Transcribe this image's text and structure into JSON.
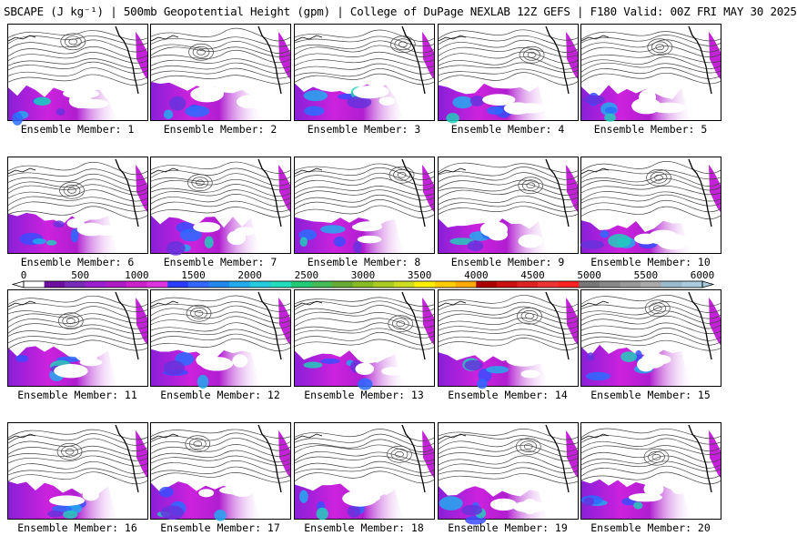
{
  "title": "SBCAPE (J kg⁻¹) | 500mb Geopotential Height (gpm) | College of DuPage NEXLAB 12Z GEFS | F180 Valid: 00Z FRI MAY 30 2025",
  "colorbar": {
    "tick_labels": [
      "0",
      "500",
      "1000",
      "1500",
      "2000",
      "2500",
      "3000",
      "3500",
      "4000",
      "4500",
      "5000",
      "5500",
      "6000"
    ],
    "colors": [
      "#ffffff",
      "#6e0fa0",
      "#7a2ab8",
      "#9b1fd0",
      "#b21bc8",
      "#cc22cc",
      "#e033e0",
      "#2a3cff",
      "#3366ff",
      "#2288ee",
      "#22aaee",
      "#22ccdd",
      "#22ddbb",
      "#22cc77",
      "#44bb55",
      "#66aa33",
      "#88bb22",
      "#aacc22",
      "#ccdd22",
      "#ffee00",
      "#ffcc00",
      "#ffaa00",
      "#aa0000",
      "#cc1111",
      "#dd2222",
      "#ee3333",
      "#ff2222",
      "#777777",
      "#888888",
      "#999999",
      "#aaaaaa",
      "#99bbcc",
      "#aaccdd"
    ]
  },
  "members": [
    {
      "label": "Ensemble Member: 1"
    },
    {
      "label": "Ensemble Member: 2"
    },
    {
      "label": "Ensemble Member: 3"
    },
    {
      "label": "Ensemble Member: 4"
    },
    {
      "label": "Ensemble Member: 5"
    },
    {
      "label": "Ensemble Member: 6"
    },
    {
      "label": "Ensemble Member: 7"
    },
    {
      "label": "Ensemble Member: 8"
    },
    {
      "label": "Ensemble Member: 9"
    },
    {
      "label": "Ensemble Member: 10"
    },
    {
      "label": "Ensemble Member: 11"
    },
    {
      "label": "Ensemble Member: 12"
    },
    {
      "label": "Ensemble Member: 13"
    },
    {
      "label": "Ensemble Member: 14"
    },
    {
      "label": "Ensemble Member: 15"
    },
    {
      "label": "Ensemble Member: 16"
    },
    {
      "label": "Ensemble Member: 17"
    },
    {
      "label": "Ensemble Member: 18"
    },
    {
      "label": "Ensemble Member: 19"
    },
    {
      "label": "Ensemble Member: 20"
    }
  ]
}
